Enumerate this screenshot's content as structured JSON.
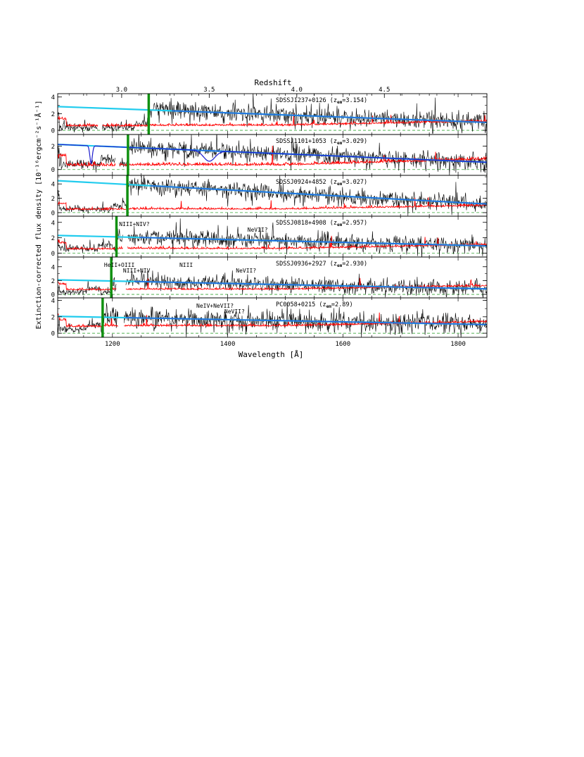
{
  "figure": {
    "top_axis_label": "Redshift",
    "xlabel": "Wavelength [Å]",
    "ylabel": "Extinction-corrected flux density [10⁻¹⁶ergcm⁻²s⁻¹Å⁻¹]",
    "colors": {
      "spectrum": "#000000",
      "error": "#ff0000",
      "continuum_light": "#22ccee",
      "continuum_dark": "#2266dd",
      "heii_edge": "#109010",
      "zero_line": "#3aa83a",
      "model": "#1a1acc"
    }
  },
  "chart_data": {
    "type": "line",
    "xlim": [
      1105,
      1850
    ],
    "x_ticks": [
      "1200",
      "1400",
      "1600",
      "1800"
    ],
    "top_ticks": [
      "3.0",
      "3.5",
      "4.0",
      "4.5"
    ],
    "panels": [
      {
        "name": "SDSSJ1237+0126",
        "label_prefix": "SDSSJ1237+0126  (",
        "label_z": "z",
        "label_em": "em",
        "label_value": "=3.154)",
        "z_em": 3.154,
        "ylim": [
          -0.5,
          4.4
        ],
        "y_ticks": [
          "0",
          "2",
          "4"
        ],
        "edge": 1263,
        "gaps": [
          [
            1175,
            1182
          ]
        ],
        "trough_start": 1108,
        "trough_end": 1263,
        "trough_level": 0.35,
        "continuum_at_1105": 2.85,
        "continuum_at_1850": 0.95,
        "error_level": 0.55,
        "noise_amplitude": 0.55,
        "annotations": []
      },
      {
        "name": "SDSSJ1101+1053",
        "label_prefix": "SDSSJ1101+1053  (",
        "label_z": "z",
        "label_em": "em",
        "label_value": "=3.029)",
        "z_em": 3.029,
        "ylim": [
          -0.5,
          3.0
        ],
        "y_ticks": [
          "0",
          "2"
        ],
        "edge": 1227,
        "gaps": [
          [
            1205,
            1212
          ]
        ],
        "trough_start": 1108,
        "trough_end": 1205,
        "trough_level": 0.45,
        "continuum_at_1105": 2.15,
        "continuum_at_1850": 0.62,
        "error_level": 0.35,
        "noise_amplitude": 0.38,
        "annotations": [],
        "model_dips": [
          [
            1163,
            1.5,
            3
          ],
          [
            1368,
            0.9,
            14
          ]
        ]
      },
      {
        "name": "SDSSJ0924+4852",
        "label_prefix": "SDSSJ0924+4852  (",
        "label_z": "z",
        "label_em": "em",
        "label_value": "=3.027)",
        "z_em": 3.027,
        "ylim": [
          -0.5,
          5.2
        ],
        "y_ticks": [
          "0",
          "2",
          "4"
        ],
        "edge": 1226,
        "gaps": [],
        "trough_start": 1108,
        "trough_end": 1226,
        "trough_level": 0.5,
        "continuum_at_1105": 4.45,
        "continuum_at_1850": 1.2,
        "error_level": 0.45,
        "noise_amplitude": 0.6,
        "annotations": []
      },
      {
        "name": "SDSSJ0818+4908",
        "label_prefix": "SDSSJ0818+4908  (",
        "label_z": "z",
        "label_em": "em",
        "label_value": "=2.957)",
        "z_em": 2.957,
        "ylim": [
          -0.5,
          4.8
        ],
        "y_ticks": [
          "0",
          "2",
          "4"
        ],
        "edge": 1207,
        "gaps": [
          [
            1218,
            1226
          ]
        ],
        "trough_start": 1108,
        "trough_end": 1200,
        "trough_level": 0.6,
        "continuum_at_1105": 2.3,
        "continuum_at_1850": 0.95,
        "error_level": 0.55,
        "noise_amplitude": 0.6,
        "annotations": [
          {
            "text": "NIII+NIV?",
            "x": 1238
          },
          {
            "text": "NeVII?",
            "x": 1452
          }
        ]
      },
      {
        "name": "SDSSJ0936+2927",
        "label_prefix": "SDSSJ0936+2927  (",
        "label_z": "z",
        "label_em": "em",
        "label_value": "=2.930)",
        "z_em": 2.93,
        "ylim": [
          -0.5,
          5.4
        ],
        "y_ticks": [
          "0",
          "2",
          "4"
        ],
        "edge": 1198,
        "gaps": [
          [
            1207,
            1223
          ]
        ],
        "trough_start": 1108,
        "trough_end": 1180,
        "trough_level": 0.35,
        "continuum_at_1105": 2.1,
        "continuum_at_1850": 0.8,
        "error_level": 0.7,
        "noise_amplitude": 0.55,
        "annotations": [
          {
            "text": "HeII+OIII",
            "x": 1212
          },
          {
            "text": "NIII+NIV",
            "x": 1242
          },
          {
            "text": "NIII",
            "x": 1328
          },
          {
            "text": "NeVII?",
            "x": 1432
          }
        ]
      },
      {
        "name": "PC0058+0215",
        "label_prefix": "PC0058+0215  (",
        "label_z": "z",
        "label_em": "em",
        "label_value": "=2.89)",
        "z_em": 2.89,
        "ylim": [
          -0.5,
          4.3
        ],
        "y_ticks": [
          "0",
          "2",
          "4"
        ],
        "edge": 1183,
        "gaps": [
          [
            1210,
            1220
          ]
        ],
        "trough_start": 1108,
        "trough_end": 1180,
        "trough_level": 0.45,
        "continuum_at_1105": 2.05,
        "continuum_at_1850": 1.05,
        "error_level": 0.85,
        "noise_amplitude": 0.65,
        "annotations": [
          {
            "text": "NeIV+NeVII?",
            "x": 1378
          },
          {
            "text": "NeVII?",
            "x": 1412
          }
        ]
      }
    ]
  }
}
